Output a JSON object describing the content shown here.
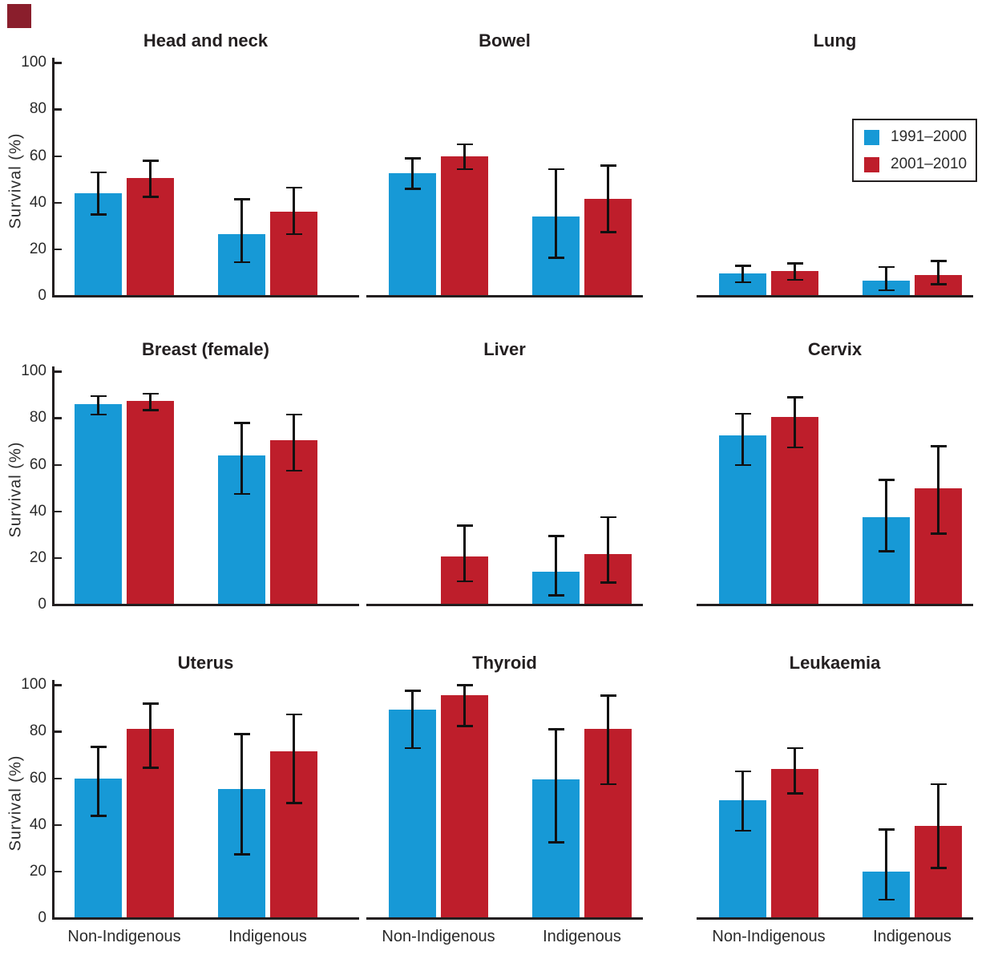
{
  "figure": {
    "y_axis_label": "Survival (%)",
    "brand_color": "#8a1e2c",
    "series_colors": {
      "1991-2000": "#1799d6",
      "2001-2010": "#be1e2b"
    },
    "text_color": "#231f20"
  },
  "legend": {
    "items": [
      {
        "label": "1991–2000",
        "color": "#1799d6"
      },
      {
        "label": "2001–2010",
        "color": "#be1e2b"
      }
    ]
  },
  "chart_data": {
    "type": "bar",
    "layout": "3x3 grid of grouped bar charts with error bars",
    "categories": [
      "Non-Indigenous",
      "Indigenous"
    ],
    "series_names": [
      "1991–2000",
      "2001–2010"
    ],
    "ylabel": "Survival (%)",
    "ylim": [
      0,
      100
    ],
    "yticks": [
      0,
      20,
      40,
      60,
      80,
      100
    ],
    "legend_position": "top-right of Lung panel",
    "panels": [
      {
        "title": "Head and neck",
        "groups": [
          {
            "category": "Non-Indigenous",
            "bars": [
              {
                "series": "1991–2000",
                "value": 44,
                "ci": [
                  35,
                  53
                ]
              },
              {
                "series": "2001–2010",
                "value": 50.5,
                "ci": [
                  42.5,
                  58
                ]
              }
            ]
          },
          {
            "category": "Indigenous",
            "bars": [
              {
                "series": "1991–2000",
                "value": 26.5,
                "ci": [
                  14.5,
                  41.5
                ]
              },
              {
                "series": "2001–2010",
                "value": 36,
                "ci": [
                  26.5,
                  46.5
                ]
              }
            ]
          }
        ]
      },
      {
        "title": "Bowel",
        "groups": [
          {
            "category": "Non-Indigenous",
            "bars": [
              {
                "series": "1991–2000",
                "value": 52.5,
                "ci": [
                  46,
                  59
                ]
              },
              {
                "series": "2001–2010",
                "value": 60,
                "ci": [
                  54.5,
                  65
                ]
              }
            ]
          },
          {
            "category": "Indigenous",
            "bars": [
              {
                "series": "1991–2000",
                "value": 34,
                "ci": [
                  16.5,
                  54.5
                ]
              },
              {
                "series": "2001–2010",
                "value": 41.5,
                "ci": [
                  27.5,
                  56
                ]
              }
            ]
          }
        ]
      },
      {
        "title": "Lung",
        "groups": [
          {
            "category": "Non-Indigenous",
            "bars": [
              {
                "series": "1991–2000",
                "value": 9.5,
                "ci": [
                  6,
                  13
                ]
              },
              {
                "series": "2001–2010",
                "value": 10.5,
                "ci": [
                  7,
                  14
                ]
              }
            ]
          },
          {
            "category": "Indigenous",
            "bars": [
              {
                "series": "1991–2000",
                "value": 6.5,
                "ci": [
                  2.5,
                  12.5
                ]
              },
              {
                "series": "2001–2010",
                "value": 9,
                "ci": [
                  5,
                  15
                ]
              }
            ]
          }
        ]
      },
      {
        "title": "Breast (female)",
        "groups": [
          {
            "category": "Non-Indigenous",
            "bars": [
              {
                "series": "1991–2000",
                "value": 86,
                "ci": [
                  81.5,
                  89.5
                ]
              },
              {
                "series": "2001–2010",
                "value": 87.5,
                "ci": [
                  83.5,
                  90.5
                ]
              }
            ]
          },
          {
            "category": "Indigenous",
            "bars": [
              {
                "series": "1991–2000",
                "value": 64,
                "ci": [
                  47.5,
                  78
                ]
              },
              {
                "series": "2001–2010",
                "value": 70.5,
                "ci": [
                  57.5,
                  81.5
                ]
              }
            ]
          }
        ]
      },
      {
        "title": "Liver",
        "groups": [
          {
            "category": "Non-Indigenous",
            "bars": [
              {
                "series": "1991–2000",
                "value": 0,
                "ci": null
              },
              {
                "series": "2001–2010",
                "value": 20.5,
                "ci": [
                  10,
                  34
                ]
              }
            ]
          },
          {
            "category": "Indigenous",
            "bars": [
              {
                "series": "1991–2000",
                "value": 14,
                "ci": [
                  4,
                  29.5
                ]
              },
              {
                "series": "2001–2010",
                "value": 21.5,
                "ci": [
                  9.5,
                  37.5
                ]
              }
            ]
          }
        ]
      },
      {
        "title": "Cervix",
        "groups": [
          {
            "category": "Non-Indigenous",
            "bars": [
              {
                "series": "1991–2000",
                "value": 72.5,
                "ci": [
                  60,
                  82
                ]
              },
              {
                "series": "2001–2010",
                "value": 80.5,
                "ci": [
                  67.5,
                  89
                ]
              }
            ]
          },
          {
            "category": "Indigenous",
            "bars": [
              {
                "series": "1991–2000",
                "value": 37.5,
                "ci": [
                  23,
                  53.5
                ]
              },
              {
                "series": "2001–2010",
                "value": 50,
                "ci": [
                  30.5,
                  68
                ]
              }
            ]
          }
        ]
      },
      {
        "title": "Uterus",
        "groups": [
          {
            "category": "Non-Indigenous",
            "bars": [
              {
                "series": "1991–2000",
                "value": 60,
                "ci": [
                  44,
                  73.5
                ]
              },
              {
                "series": "2001–2010",
                "value": 81,
                "ci": [
                  64.5,
                  92
                ]
              }
            ]
          },
          {
            "category": "Indigenous",
            "bars": [
              {
                "series": "1991–2000",
                "value": 55.5,
                "ci": [
                  27.5,
                  79
                ]
              },
              {
                "series": "2001–2010",
                "value": 71.5,
                "ci": [
                  49.5,
                  87.5
                ]
              }
            ]
          }
        ]
      },
      {
        "title": "Thyroid",
        "groups": [
          {
            "category": "Non-Indigenous",
            "bars": [
              {
                "series": "1991–2000",
                "value": 89.5,
                "ci": [
                  73,
                  97.5
                ]
              },
              {
                "series": "2001–2010",
                "value": 95.5,
                "ci": [
                  82.5,
                  100
                ]
              }
            ]
          },
          {
            "category": "Indigenous",
            "bars": [
              {
                "series": "1991–2000",
                "value": 59.5,
                "ci": [
                  32.5,
                  81
                ]
              },
              {
                "series": "2001–2010",
                "value": 81,
                "ci": [
                  57.5,
                  95.5
                ]
              }
            ]
          }
        ]
      },
      {
        "title": "Leukaemia",
        "groups": [
          {
            "category": "Non-Indigenous",
            "bars": [
              {
                "series": "1991–2000",
                "value": 50.5,
                "ci": [
                  37.5,
                  63
                ]
              },
              {
                "series": "2001–2010",
                "value": 64,
                "ci": [
                  53.5,
                  73
                ]
              }
            ]
          },
          {
            "category": "Indigenous",
            "bars": [
              {
                "series": "1991–2000",
                "value": 20,
                "ci": [
                  8,
                  38
                ]
              },
              {
                "series": "2001–2010",
                "value": 39.5,
                "ci": [
                  21.5,
                  57.5
                ]
              }
            ]
          }
        ]
      }
    ]
  }
}
